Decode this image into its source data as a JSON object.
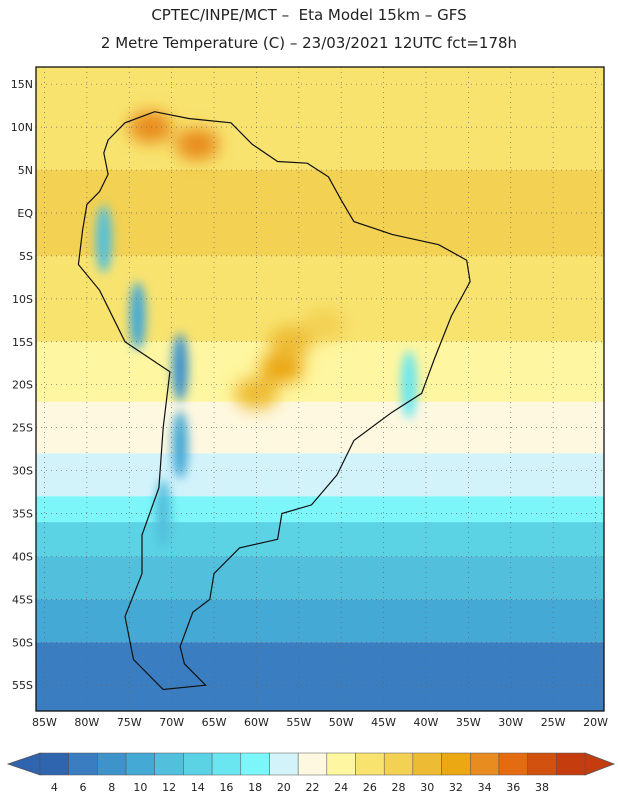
{
  "header": {
    "line1": "CPTEC/INPE/MCT –  Eta Model 15km – GFS",
    "line2": "2 Metre Temperature (C) – 23/03/2021 12UTC fct=178h"
  },
  "map": {
    "lon_min": -86,
    "lon_max": -19,
    "lat_min": -58,
    "lat_max": 17,
    "lat_ticks": [
      {
        "value": 15,
        "label": "15N"
      },
      {
        "value": 10,
        "label": "10N"
      },
      {
        "value": 5,
        "label": "5N"
      },
      {
        "value": 0,
        "label": "EQ"
      },
      {
        "value": -5,
        "label": "5S"
      },
      {
        "value": -10,
        "label": "10S"
      },
      {
        "value": -15,
        "label": "15S"
      },
      {
        "value": -20,
        "label": "20S"
      },
      {
        "value": -25,
        "label": "25S"
      },
      {
        "value": -30,
        "label": "30S"
      },
      {
        "value": -35,
        "label": "35S"
      },
      {
        "value": -40,
        "label": "40S"
      },
      {
        "value": -45,
        "label": "45S"
      },
      {
        "value": -50,
        "label": "50S"
      },
      {
        "value": -55,
        "label": "55S"
      }
    ],
    "lon_ticks": [
      {
        "value": -85,
        "label": "85W"
      },
      {
        "value": -80,
        "label": "80W"
      },
      {
        "value": -75,
        "label": "75W"
      },
      {
        "value": -70,
        "label": "70W"
      },
      {
        "value": -65,
        "label": "65W"
      },
      {
        "value": -60,
        "label": "60W"
      },
      {
        "value": -55,
        "label": "55W"
      },
      {
        "value": -50,
        "label": "50W"
      },
      {
        "value": -45,
        "label": "45W"
      },
      {
        "value": -40,
        "label": "40W"
      },
      {
        "value": -35,
        "label": "35W"
      },
      {
        "value": -30,
        "label": "30W"
      },
      {
        "value": -25,
        "label": "25W"
      },
      {
        "value": -20,
        "label": "20W"
      }
    ],
    "temperature_bands": [
      {
        "lat_from": 17,
        "lat_to": 5,
        "temp": 26
      },
      {
        "lat_from": 5,
        "lat_to": -5,
        "temp": 28
      },
      {
        "lat_from": -5,
        "lat_to": -15,
        "temp": 26
      },
      {
        "lat_from": -15,
        "lat_to": -22,
        "temp": 24
      },
      {
        "lat_from": -22,
        "lat_to": -28,
        "temp": 22
      },
      {
        "lat_from": -28,
        "lat_to": -33,
        "temp": 20
      },
      {
        "lat_from": -33,
        "lat_to": -36,
        "temp": 18
      },
      {
        "lat_from": -36,
        "lat_to": -40,
        "temp": 14
      },
      {
        "lat_from": -40,
        "lat_to": -45,
        "temp": 12
      },
      {
        "lat_from": -45,
        "lat_to": -50,
        "temp": 10
      },
      {
        "lat_from": -50,
        "lat_to": -58,
        "temp": 6
      }
    ],
    "land_outline": [
      [
        -77.5,
        8.5
      ],
      [
        -75.5,
        10.5
      ],
      [
        -72,
        11.8
      ],
      [
        -68,
        11
      ],
      [
        -63,
        10.5
      ],
      [
        -60.5,
        8
      ],
      [
        -57.5,
        6
      ],
      [
        -54,
        5.8
      ],
      [
        -51.5,
        4.2
      ],
      [
        -50,
        1.5
      ],
      [
        -48.5,
        -1
      ],
      [
        -44,
        -2.5
      ],
      [
        -38.5,
        -3.7
      ],
      [
        -35.2,
        -5.5
      ],
      [
        -34.8,
        -8
      ],
      [
        -37,
        -12
      ],
      [
        -39,
        -17
      ],
      [
        -40.5,
        -21
      ],
      [
        -44,
        -23.2
      ],
      [
        -48.5,
        -26.5
      ],
      [
        -50.5,
        -30.5
      ],
      [
        -53.5,
        -34
      ],
      [
        -57,
        -35
      ],
      [
        -57.5,
        -38
      ],
      [
        -62,
        -39
      ],
      [
        -65,
        -42
      ],
      [
        -65.5,
        -45
      ],
      [
        -67.5,
        -46.5
      ],
      [
        -69,
        -50.5
      ],
      [
        -68.5,
        -52.5
      ],
      [
        -66,
        -55
      ],
      [
        -71,
        -55.5
      ],
      [
        -74.5,
        -52
      ],
      [
        -75.5,
        -47
      ],
      [
        -73.5,
        -42
      ],
      [
        -73.5,
        -37.5
      ],
      [
        -71.5,
        -32
      ],
      [
        -71,
        -25
      ],
      [
        -70.2,
        -18.5
      ],
      [
        -75.5,
        -15
      ],
      [
        -78.5,
        -9
      ],
      [
        -81,
        -6
      ],
      [
        -80.5,
        -2
      ],
      [
        -80,
        1
      ],
      [
        -78.5,
        2.5
      ],
      [
        -77.5,
        4.5
      ],
      [
        -78,
        7
      ],
      [
        -77.5,
        8.5
      ]
    ],
    "hot_spots": [
      {
        "lon": -67,
        "lat": 8,
        "temp": 34
      },
      {
        "lon": -72.5,
        "lat": 10,
        "temp": 34
      },
      {
        "lon": -57,
        "lat": -18,
        "temp": 32
      },
      {
        "lon": -56,
        "lat": -15,
        "temp": 30
      },
      {
        "lon": -60,
        "lat": -21,
        "temp": 30
      },
      {
        "lon": -52,
        "lat": -13,
        "temp": 28
      }
    ],
    "cool_spots": [
      {
        "lon": -78,
        "lat": -3,
        "temp": 12
      },
      {
        "lon": -74,
        "lat": -12,
        "temp": 10
      },
      {
        "lon": -69,
        "lat": -18,
        "temp": 8
      },
      {
        "lon": -69,
        "lat": -27,
        "temp": 10
      },
      {
        "lon": -71,
        "lat": -35,
        "temp": 12
      },
      {
        "lon": -42,
        "lat": -20,
        "temp": 16
      }
    ]
  },
  "colorbar": {
    "labels": [
      "4",
      "6",
      "8",
      "10",
      "12",
      "14",
      "16",
      "18",
      "20",
      "22",
      "24",
      "26",
      "28",
      "30",
      "32",
      "34",
      "36",
      "38"
    ],
    "colors": [
      "#2f64ae",
      "#3a7dc0",
      "#3e93cb",
      "#45a9d5",
      "#52bfdc",
      "#5bd3e5",
      "#6ae6f0",
      "#7cf6f9",
      "#d3f3fb",
      "#fef8e0",
      "#fef6a0",
      "#f8e36f",
      "#f3d152",
      "#eebc34",
      "#eba812",
      "#e88c1f",
      "#e36c10",
      "#d2510e",
      "#c53c0e"
    ]
  }
}
